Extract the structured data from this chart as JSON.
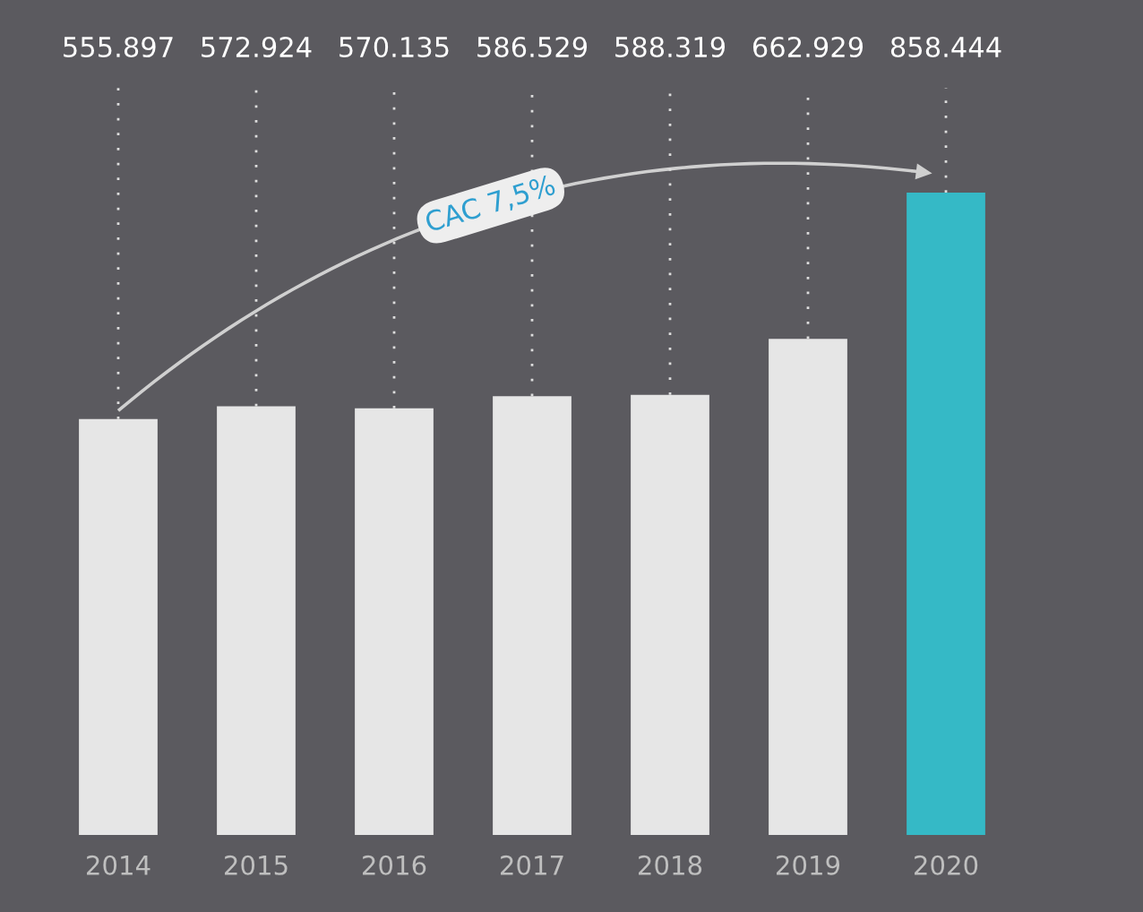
{
  "chart_data": {
    "type": "bar",
    "categories": [
      "2014",
      "2015",
      "2016",
      "2017",
      "2018",
      "2019",
      "2020"
    ],
    "values": [
      555.897,
      572.924,
      570.135,
      586.529,
      588.319,
      662.929,
      858.444
    ],
    "value_labels": [
      "555.897",
      "572.924",
      "570.135",
      "586.529",
      "588.319",
      "662.929",
      "858.444"
    ],
    "colors": [
      "#e6e6e6",
      "#e6e6e6",
      "#e6e6e6",
      "#e6e6e6",
      "#e6e6e6",
      "#e6e6e6",
      "#35b9c6"
    ],
    "annotations": [
      "CAC 7,5%"
    ],
    "grid": false
  }
}
